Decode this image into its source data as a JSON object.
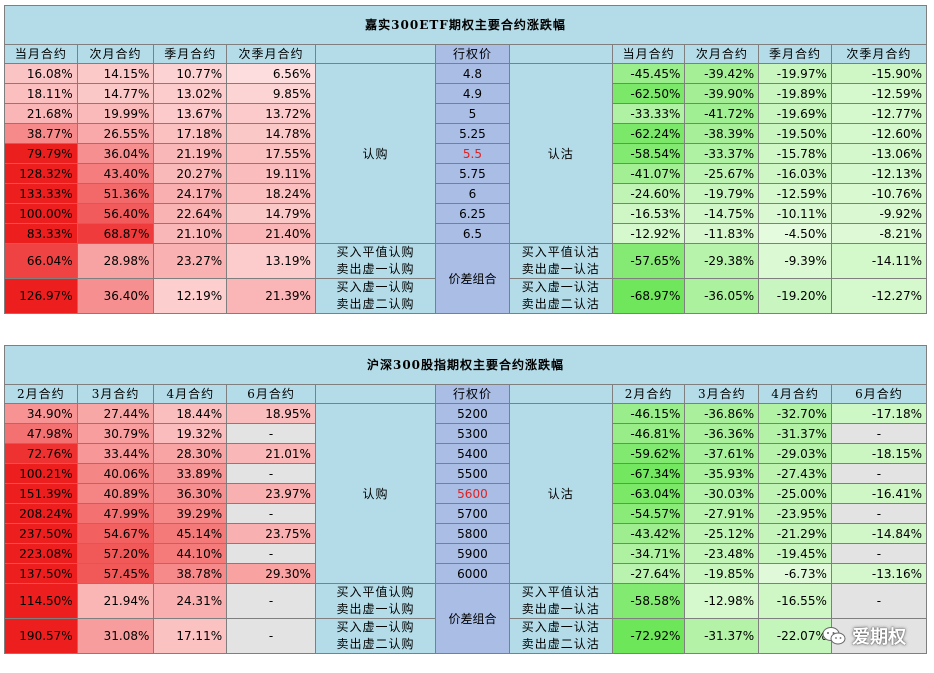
{
  "etf": {
    "title": "嘉实300ETF期权主要合约涨跌幅",
    "call_headers": [
      "当月合约",
      "次月合约",
      "季月合约",
      "次季月合约"
    ],
    "strike_header": "行权价",
    "put_headers": [
      "当月合约",
      "次月合约",
      "季月合约",
      "次季月合约"
    ],
    "call_label": "认购",
    "put_label": "认沽",
    "combo_label": "价差组合",
    "rows": [
      {
        "strike": "4.8",
        "call": [
          "16.08%",
          "14.15%",
          "10.77%",
          "6.56%"
        ],
        "put": [
          "-45.45%",
          "-39.42%",
          "-19.97%",
          "-15.90%"
        ]
      },
      {
        "strike": "4.9",
        "call": [
          "18.11%",
          "14.77%",
          "13.02%",
          "9.85%"
        ],
        "put": [
          "-62.50%",
          "-39.90%",
          "-19.89%",
          "-12.59%"
        ]
      },
      {
        "strike": "5",
        "call": [
          "21.68%",
          "19.99%",
          "13.67%",
          "13.72%"
        ],
        "put": [
          "-33.33%",
          "-41.72%",
          "-19.69%",
          "-12.77%"
        ]
      },
      {
        "strike": "5.25",
        "call": [
          "38.77%",
          "26.55%",
          "17.18%",
          "14.78%"
        ],
        "put": [
          "-62.24%",
          "-38.39%",
          "-19.50%",
          "-12.60%"
        ]
      },
      {
        "strike": "5.5",
        "call": [
          "79.79%",
          "36.04%",
          "21.19%",
          "17.55%"
        ],
        "put": [
          "-58.54%",
          "-33.37%",
          "-15.78%",
          "-13.06%"
        ]
      },
      {
        "strike": "5.75",
        "call": [
          "128.32%",
          "43.40%",
          "20.27%",
          "19.11%"
        ],
        "put": [
          "-41.07%",
          "-25.67%",
          "-16.03%",
          "-12.13%"
        ]
      },
      {
        "strike": "6",
        "call": [
          "133.33%",
          "51.36%",
          "24.17%",
          "18.24%"
        ],
        "put": [
          "-24.60%",
          "-19.79%",
          "-12.59%",
          "-10.76%"
        ]
      },
      {
        "strike": "6.25",
        "call": [
          "100.00%",
          "56.40%",
          "22.64%",
          "14.79%"
        ],
        "put": [
          "-16.53%",
          "-14.75%",
          "-10.11%",
          "-9.92%"
        ]
      },
      {
        "strike": "6.5",
        "call": [
          "83.33%",
          "68.87%",
          "21.10%",
          "21.40%"
        ],
        "put": [
          "-12.92%",
          "-11.83%",
          "-4.50%",
          "-8.21%"
        ]
      }
    ],
    "combos": [
      {
        "call_desc": [
          "买入平值认购",
          "卖出虚一认购"
        ],
        "put_desc": [
          "买入平值认沽",
          "卖出虚一认沽"
        ],
        "call": [
          "66.04%",
          "28.98%",
          "23.27%",
          "13.19%"
        ],
        "put": [
          "-57.65%",
          "-29.38%",
          "-9.39%",
          "-14.11%"
        ]
      },
      {
        "call_desc": [
          "买入虚一认购",
          "卖出虚二认购"
        ],
        "put_desc": [
          "买入虚一认沽",
          "卖出虚二认沽"
        ],
        "call": [
          "126.97%",
          "36.40%",
          "12.19%",
          "21.39%"
        ],
        "put": [
          "-68.97%",
          "-36.05%",
          "-19.20%",
          "-12.27%"
        ]
      }
    ]
  },
  "index": {
    "title": "沪深300股指期权主要合约涨跌幅",
    "call_headers": [
      "2月合约",
      "3月合约",
      "4月合约",
      "6月合约"
    ],
    "strike_header": "行权价",
    "put_headers": [
      "2月合约",
      "3月合约",
      "4月合约",
      "6月合约"
    ],
    "call_label": "认购",
    "put_label": "认沽",
    "combo_label": "价差组合",
    "rows": [
      {
        "strike": "5200",
        "call": [
          "34.90%",
          "27.44%",
          "18.44%",
          "18.95%"
        ],
        "put": [
          "-46.15%",
          "-36.86%",
          "-32.70%",
          "-17.18%"
        ]
      },
      {
        "strike": "5300",
        "call": [
          "47.98%",
          "30.79%",
          "19.32%",
          "-"
        ],
        "put": [
          "-46.81%",
          "-36.36%",
          "-31.37%",
          "-"
        ]
      },
      {
        "strike": "5400",
        "call": [
          "72.76%",
          "33.44%",
          "28.30%",
          "21.01%"
        ],
        "put": [
          "-59.62%",
          "-37.61%",
          "-29.03%",
          "-18.15%"
        ]
      },
      {
        "strike": "5500",
        "call": [
          "100.21%",
          "40.06%",
          "33.89%",
          "-"
        ],
        "put": [
          "-67.34%",
          "-35.93%",
          "-27.43%",
          "-"
        ]
      },
      {
        "strike": "5600",
        "call": [
          "151.39%",
          "40.89%",
          "36.30%",
          "23.97%"
        ],
        "put": [
          "-63.04%",
          "-30.03%",
          "-25.00%",
          "-16.41%"
        ]
      },
      {
        "strike": "5700",
        "call": [
          "208.24%",
          "47.99%",
          "39.29%",
          "-"
        ],
        "put": [
          "-54.57%",
          "-27.91%",
          "-23.95%",
          "-"
        ]
      },
      {
        "strike": "5800",
        "call": [
          "237.50%",
          "54.67%",
          "45.14%",
          "23.75%"
        ],
        "put": [
          "-43.42%",
          "-25.12%",
          "-21.29%",
          "-14.84%"
        ]
      },
      {
        "strike": "5900",
        "call": [
          "223.08%",
          "57.20%",
          "44.10%",
          "-"
        ],
        "put": [
          "-34.71%",
          "-23.48%",
          "-19.45%",
          "-"
        ]
      },
      {
        "strike": "6000",
        "call": [
          "137.50%",
          "57.45%",
          "38.78%",
          "29.30%"
        ],
        "put": [
          "-27.64%",
          "-19.85%",
          "-6.73%",
          "-13.16%"
        ]
      }
    ],
    "combos": [
      {
        "call_desc": [
          "买入平值认购",
          "卖出虚一认购"
        ],
        "put_desc": [
          "买入平值认沽",
          "卖出虚一认沽"
        ],
        "call": [
          "114.50%",
          "21.94%",
          "24.31%",
          "-"
        ],
        "put": [
          "-58.58%",
          "-12.98%",
          "-16.55%",
          "-"
        ]
      },
      {
        "call_desc": [
          "买入虚一认购",
          "卖出虚二认购"
        ],
        "put_desc": [
          "买入虚一认沽",
          "卖出虚二认沽"
        ],
        "call": [
          "190.57%",
          "31.08%",
          "17.11%",
          "-"
        ],
        "put": [
          "-72.92%",
          "-31.37%",
          "-22.07%",
          "-"
        ]
      }
    ]
  },
  "watermark": {
    "text": "爱期权",
    "icon": "wechat-icon"
  }
}
